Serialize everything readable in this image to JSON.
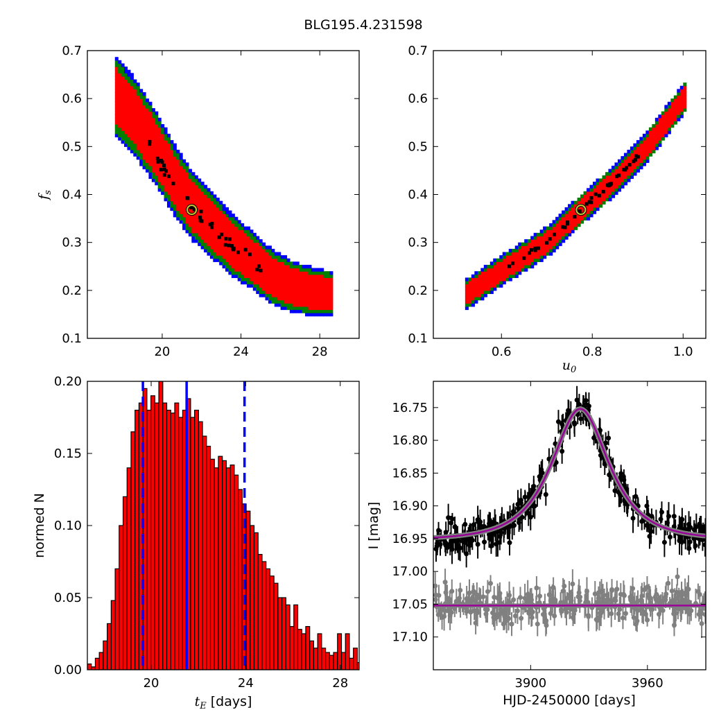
{
  "figure": {
    "title": "BLG195.4.231598"
  },
  "chart_data": [
    {
      "type": "heatmap",
      "panel": "top-left",
      "xlabel": "",
      "ylabel": "f_s",
      "ylabel_main": "f",
      "ylabel_sub": "s",
      "xlim": [
        16.2,
        30.0
      ],
      "ylim": [
        0.1,
        0.7
      ],
      "xticks": [
        20,
        24,
        28
      ],
      "xtick_labels": [
        "20",
        "24",
        "28"
      ],
      "yticks": [
        0.1,
        0.2,
        0.3,
        0.4,
        0.5,
        0.6,
        0.7
      ],
      "ytick_labels": [
        "0.1",
        "0.2",
        "0.3",
        "0.4",
        "0.5",
        "0.6",
        "0.7"
      ],
      "levels": [
        "blue",
        "green",
        "red",
        "black"
      ],
      "colors": {
        "blue": "#0000ff",
        "green": "#007f00",
        "red": "#ff0000",
        "black": "#000000"
      },
      "ridge": [
        [
          17.6,
          0.6
        ],
        [
          18.5,
          0.56
        ],
        [
          19.5,
          0.5
        ],
        [
          20.5,
          0.43
        ],
        [
          21.5,
          0.37
        ],
        [
          22.5,
          0.33
        ],
        [
          23.5,
          0.29
        ],
        [
          24.5,
          0.26
        ],
        [
          25.5,
          0.225
        ],
        [
          26.5,
          0.205
        ],
        [
          27.5,
          0.195
        ],
        [
          28.5,
          0.19
        ]
      ],
      "half_widths": [
        0.04,
        0.055,
        0.075,
        0.1
      ],
      "best_fit": {
        "x": 21.5,
        "y": 0.368,
        "color": "#cccc33"
      }
    },
    {
      "type": "heatmap",
      "panel": "top-right",
      "xlabel": "u_0",
      "xlabel_main": "u",
      "xlabel_sub": "0",
      "ylabel": "",
      "xlim": [
        0.45,
        1.05
      ],
      "ylim": [
        0.1,
        0.7
      ],
      "xticks": [
        0.6,
        0.8,
        1.0
      ],
      "xtick_labels": [
        "0.6",
        "0.8",
        "1.0"
      ],
      "yticks": [
        0.1,
        0.2,
        0.3,
        0.4,
        0.5,
        0.6,
        0.7
      ],
      "ytick_labels": [
        "0.1",
        "0.2",
        "0.3",
        "0.4",
        "0.5",
        "0.6",
        "0.7"
      ],
      "colors": {
        "blue": "#0000ff",
        "green": "#007f00",
        "red": "#ff0000",
        "black": "#000000"
      },
      "ridge": [
        [
          0.52,
          0.19
        ],
        [
          0.6,
          0.24
        ],
        [
          0.7,
          0.3
        ],
        [
          0.775,
          0.368
        ],
        [
          0.85,
          0.43
        ],
        [
          0.92,
          0.5
        ],
        [
          1.0,
          0.6
        ]
      ],
      "half_widths": [
        0.007,
        0.013,
        0.02,
        0.026
      ],
      "best_fit": {
        "x": 0.775,
        "y": 0.368,
        "color": "#cccc33"
      }
    },
    {
      "type": "bar",
      "panel": "bottom-left",
      "xlabel": "t_E [days]",
      "xlabel_main": "t",
      "xlabel_sub": "E",
      "xlabel_unit": "[days]",
      "ylabel": "normed N",
      "xlim": [
        17.3,
        28.8
      ],
      "ylim": [
        0.0,
        0.2
      ],
      "xticks": [
        20,
        24,
        28
      ],
      "xtick_labels": [
        "20",
        "24",
        "28"
      ],
      "yticks": [
        0.0,
        0.05,
        0.1,
        0.15,
        0.2
      ],
      "ytick_labels": [
        "0.00",
        "0.05",
        "0.10",
        "0.15",
        "0.20"
      ],
      "bin_start": 17.3,
      "bin_width": 0.168,
      "values": [
        0.004,
        0.002,
        0.008,
        0.012,
        0.02,
        0.032,
        0.048,
        0.07,
        0.1,
        0.12,
        0.14,
        0.165,
        0.18,
        0.185,
        0.195,
        0.18,
        0.19,
        0.185,
        0.2,
        0.185,
        0.18,
        0.178,
        0.185,
        0.175,
        0.18,
        0.188,
        0.175,
        0.18,
        0.172,
        0.162,
        0.155,
        0.146,
        0.14,
        0.148,
        0.145,
        0.14,
        0.142,
        0.135,
        0.125,
        0.115,
        0.11,
        0.1,
        0.095,
        0.08,
        0.075,
        0.07,
        0.065,
        0.06,
        0.05,
        0.05,
        0.045,
        0.03,
        0.045,
        0.028,
        0.025,
        0.03,
        0.02,
        0.015,
        0.025,
        0.015,
        0.012,
        0.01,
        0.012,
        0.025,
        0.012,
        0.025,
        0.008,
        0.015,
        0.005
      ],
      "bar_color": "#ff0000",
      "vlines": [
        {
          "x": 21.5,
          "style": "solid",
          "color": "#0000ff"
        },
        {
          "x": 19.65,
          "style": "dashed",
          "color": "#0000ff"
        },
        {
          "x": 23.95,
          "style": "dashed",
          "color": "#0000ff"
        }
      ]
    },
    {
      "type": "scatter",
      "panel": "bottom-right",
      "xlabel": "HJD-2450000 [days]",
      "ylabel": "I [mag]",
      "xlim": [
        3850,
        3990
      ],
      "ylim": [
        17.15,
        16.71
      ],
      "y_inverted": true,
      "xticks": [
        3900,
        3960
      ],
      "xtick_labels": [
        "3900",
        "3960"
      ],
      "yticks": [
        16.75,
        16.8,
        16.85,
        16.9,
        16.95,
        17.0,
        17.05,
        17.1
      ],
      "ytick_labels": [
        "16.75",
        "16.80",
        "16.85",
        "16.90",
        "16.95",
        "17.00",
        "17.05",
        "17.10"
      ],
      "series": [
        {
          "role": "data",
          "color": "#000000",
          "model": {
            "baseline": 16.952,
            "peak": 16.752,
            "t0": 3925.5,
            "tE": 21.5,
            "u0": 0.775,
            "fs": 0.368
          },
          "x_range": [
            3850,
            3990
          ],
          "n_points": 300,
          "scatter": 0.018,
          "errorbar": 0.015
        },
        {
          "role": "residuals",
          "color": "#808080",
          "level": 17.052,
          "x_range": [
            3850,
            3990
          ],
          "n_points": 300,
          "scatter": 0.022,
          "errorbar": 0.015
        }
      ],
      "model_line_color": "#990099",
      "model_band_color": "#808080"
    }
  ]
}
